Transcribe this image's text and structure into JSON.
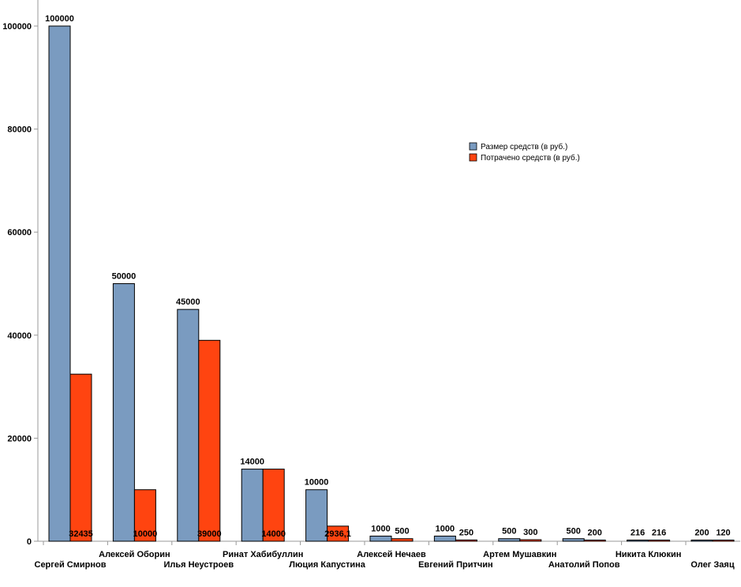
{
  "chart_data": {
    "type": "bar",
    "title": "",
    "xlabel": "",
    "ylabel": "",
    "ylim": [
      0,
      100000
    ],
    "yticks": [
      0,
      20000,
      40000,
      60000,
      80000,
      100000
    ],
    "legend_position": "right",
    "categories": [
      "Сергей Смирнов",
      "Алексей Оборин",
      "Илья Неустроев",
      "Ринат Хабибуллин",
      "Люция Капустина",
      "Алексей Нечаев",
      "Евгений Притчин",
      "Артем Мушавкин",
      "Анатолий Попов",
      "Никита Клюкин",
      "Олег Заяц"
    ],
    "series": [
      {
        "name": "Размер средств (в руб.)",
        "color": "#7a9bc0",
        "values": [
          100000,
          50000,
          45000,
          14000,
          10000,
          1000,
          1000,
          500,
          500,
          216,
          200
        ],
        "labels": [
          "100000",
          "50000",
          "45000",
          "14000",
          "10000",
          "1000",
          "1000",
          "500",
          "500",
          "216",
          "200"
        ]
      },
      {
        "name": "Потрачено средств (в руб.)",
        "color": "#ff4410",
        "values": [
          32435,
          10000,
          39000,
          14000,
          2936.1,
          500,
          250,
          300,
          200,
          216,
          120
        ],
        "labels": [
          "32435",
          "10000",
          "39000",
          "14000",
          "2936,1",
          "500",
          "250",
          "300",
          "200",
          "216",
          "120"
        ]
      }
    ]
  }
}
